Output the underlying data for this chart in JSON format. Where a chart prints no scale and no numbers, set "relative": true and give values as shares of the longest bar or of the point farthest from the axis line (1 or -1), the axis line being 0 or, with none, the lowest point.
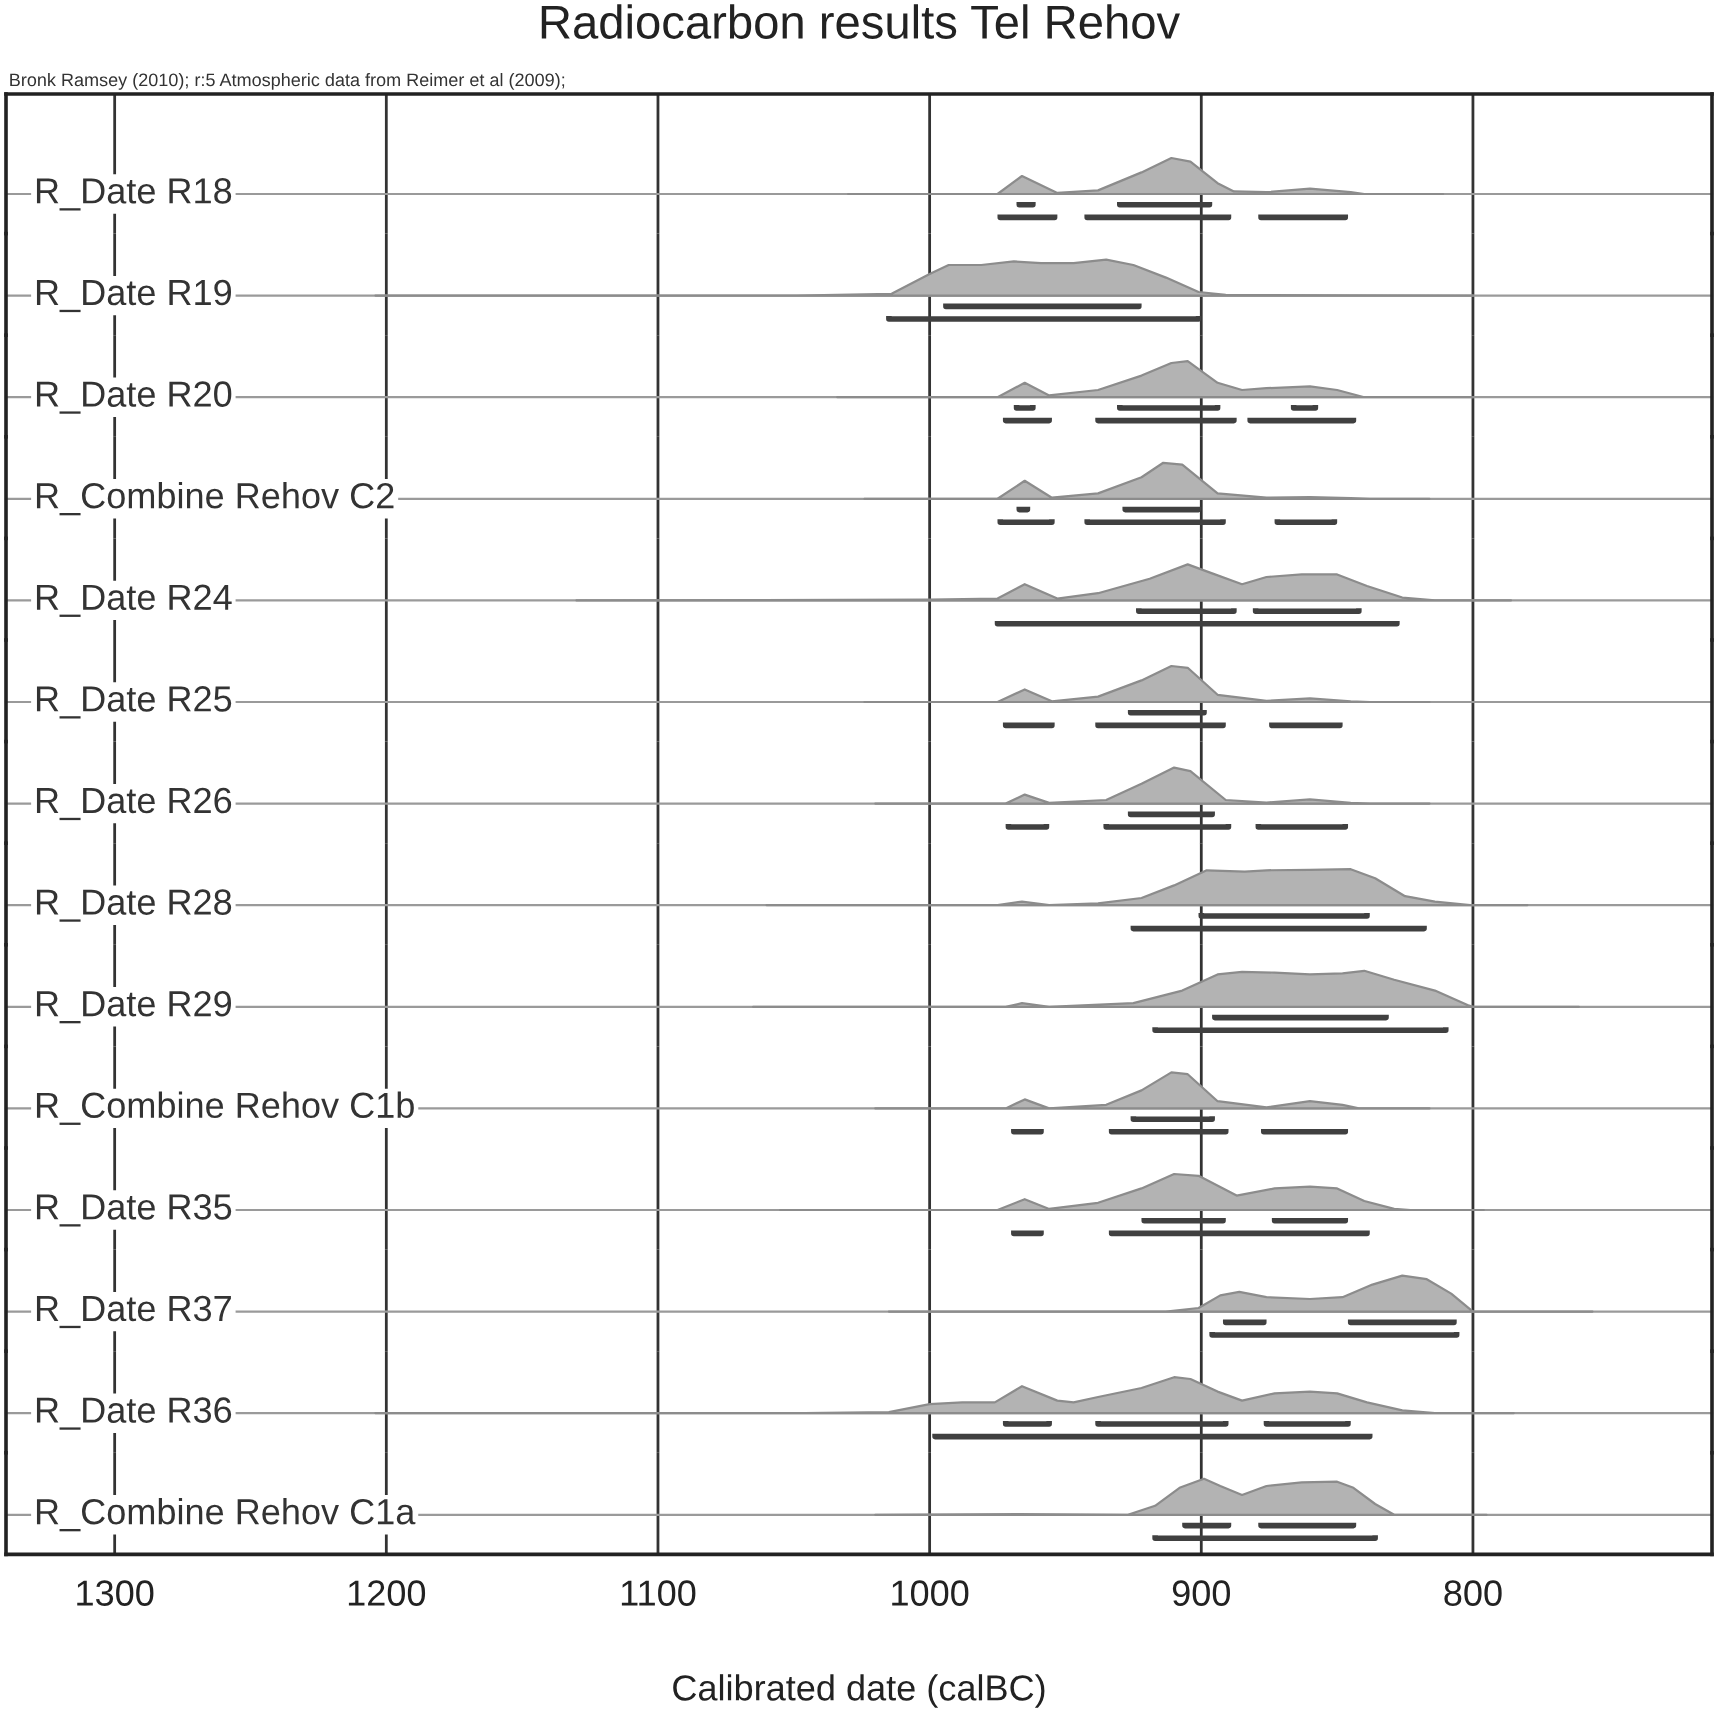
{
  "chart_data": [
    {
      "type": "area",
      "title": "Radiocarbon results Tel Rehov",
      "annotations": [
        "Bronk Ramsey (2010); r:5 Atmospheric data from Reimer et al (2009);"
      ],
      "ylabel": "R_Date R18",
      "relative": true,
      "xlim": [
        1340,
        712
      ],
      "xticks": [
        1300,
        1200,
        1100,
        1000,
        900,
        800
      ],
      "tick_labels": false,
      "grid": "x",
      "series": [
        {
          "color": "#b3b3b3",
          "x": [
            1030,
            975,
            966,
            953,
            938,
            922,
            911,
            904,
            894,
            888,
            876,
            860,
            845,
            840,
            811
          ],
          "values": [
            0,
            0,
            0.5,
            0.03,
            0.1,
            0.6,
            1,
            0.9,
            0.3,
            0.07,
            0.05,
            0.15,
            0.05,
            0,
            0
          ]
        },
        {
          "type": "line",
          "color": "#404040",
          "x": [
            967,
            967,
            962,
            962,
            null,
            930,
            930,
            897,
            897
          ],
          "values": [
            -0.22,
            -0.3,
            -0.3,
            -0.22,
            null,
            -0.22,
            -0.3,
            -0.3,
            -0.22
          ]
        },
        {
          "type": "line",
          "color": "#404040",
          "x": [
            974,
            974,
            954,
            954,
            null,
            942,
            942,
            890,
            890,
            null,
            878,
            878,
            847,
            847
          ],
          "values": [
            -0.57,
            -0.65,
            -0.65,
            -0.57,
            null,
            -0.57,
            -0.65,
            -0.65,
            -0.57,
            null,
            -0.57,
            -0.65,
            -0.65,
            -0.57
          ]
        }
      ]
    },
    {
      "type": "area",
      "ylabel": "R_Date R19",
      "relative": true,
      "xlim": [
        1340,
        712
      ],
      "xticks": [
        1300,
        1200,
        1100,
        1000,
        900,
        800
      ],
      "tick_labels": false,
      "grid": "x",
      "series": [
        {
          "color": "#b3b3b3",
          "x": [
            1204,
            1049,
            1014,
            1000,
            993,
            981,
            969,
            959,
            947,
            935,
            925,
            913,
            901,
            891,
            845,
            800
          ],
          "values": [
            0,
            0,
            0.05,
            0.6,
            0.85,
            0.85,
            0.95,
            0.9,
            0.9,
            1,
            0.85,
            0.5,
            0.1,
            0.02,
            0.01,
            0
          ]
        },
        {
          "type": "line",
          "color": "#404040",
          "x": [
            994,
            994,
            923,
            923
          ],
          "values": [
            -0.22,
            -0.3,
            -0.3,
            -0.22
          ]
        },
        {
          "type": "line",
          "color": "#404040",
          "x": [
            1015,
            1015,
            901,
            901
          ],
          "values": [
            -0.57,
            -0.65,
            -0.65,
            -0.57
          ]
        }
      ]
    },
    {
      "type": "area",
      "ylabel": "R_Date R20",
      "relative": true,
      "xlim": [
        1340,
        712
      ],
      "xticks": [
        1300,
        1200,
        1100,
        1000,
        900,
        800
      ],
      "tick_labels": false,
      "grid": "x",
      "series": [
        {
          "color": "#b3b3b3",
          "x": [
            1034,
            975,
            965,
            956,
            938,
            922,
            911,
            905,
            894,
            885,
            876,
            860,
            850,
            840,
            800
          ],
          "values": [
            0,
            0,
            0.4,
            0.05,
            0.2,
            0.6,
            0.95,
            1,
            0.4,
            0.2,
            0.25,
            0.3,
            0.2,
            0,
            0
          ]
        },
        {
          "type": "line",
          "color": "#404040",
          "x": [
            968,
            968,
            962,
            962,
            null,
            930,
            930,
            894,
            894,
            null,
            866,
            866,
            858,
            858
          ],
          "values": [
            -0.22,
            -0.3,
            -0.3,
            -0.22,
            null,
            -0.22,
            -0.3,
            -0.3,
            -0.22,
            null,
            -0.22,
            -0.3,
            -0.3,
            -0.22
          ]
        },
        {
          "type": "line",
          "color": "#404040",
          "x": [
            972,
            972,
            956,
            956,
            null,
            938,
            938,
            888,
            888,
            null,
            882,
            882,
            844,
            844
          ],
          "values": [
            -0.57,
            -0.65,
            -0.65,
            -0.57,
            null,
            -0.57,
            -0.65,
            -0.65,
            -0.57,
            null,
            -0.57,
            -0.65,
            -0.65,
            -0.57
          ]
        }
      ]
    },
    {
      "type": "area",
      "ylabel": "R_Combine Rehov C2",
      "relative": true,
      "xlim": [
        1340,
        712
      ],
      "xticks": [
        1300,
        1200,
        1100,
        1000,
        900,
        800
      ],
      "tick_labels": false,
      "grid": "x",
      "series": [
        {
          "color": "#b3b3b3",
          "x": [
            1024,
            975,
            965,
            955,
            938,
            922,
            914,
            907,
            894,
            876,
            860,
            845,
            838,
            816
          ],
          "values": [
            0,
            0,
            0.5,
            0.03,
            0.15,
            0.6,
            1,
            0.95,
            0.15,
            0.03,
            0.05,
            0.02,
            0,
            0
          ]
        },
        {
          "type": "line",
          "color": "#404040",
          "x": [
            967,
            967,
            964,
            964,
            null,
            928,
            928,
            901,
            901
          ],
          "values": [
            -0.22,
            -0.3,
            -0.3,
            -0.22,
            null,
            -0.22,
            -0.3,
            -0.3,
            -0.22
          ]
        },
        {
          "type": "line",
          "color": "#404040",
          "x": [
            974,
            974,
            955,
            955,
            null,
            942,
            942,
            892,
            892,
            null,
            872,
            872,
            851,
            851
          ],
          "values": [
            -0.57,
            -0.65,
            -0.65,
            -0.57,
            null,
            -0.57,
            -0.65,
            -0.65,
            -0.57,
            null,
            -0.57,
            -0.65,
            -0.65,
            -0.57
          ]
        }
      ]
    },
    {
      "type": "area",
      "ylabel": "R_Date R24",
      "relative": true,
      "xlim": [
        1340,
        712
      ],
      "xticks": [
        1300,
        1200,
        1100,
        1000,
        900,
        800
      ],
      "tick_labels": false,
      "grid": "x",
      "series": [
        {
          "color": "#b3b3b3",
          "x": [
            1130,
            1000,
            975,
            965,
            953,
            938,
            919,
            905,
            896,
            885,
            876,
            863,
            850,
            839,
            826,
            814,
            786
          ],
          "values": [
            0,
            0.02,
            0.05,
            0.45,
            0.05,
            0.2,
            0.6,
            1,
            0.75,
            0.45,
            0.65,
            0.72,
            0.72,
            0.4,
            0.08,
            0,
            0
          ]
        },
        {
          "type": "line",
          "color": "#404040",
          "x": [
            923,
            923,
            888,
            888,
            null,
            880,
            880,
            842,
            842
          ],
          "values": [
            -0.22,
            -0.3,
            -0.3,
            -0.22,
            null,
            -0.22,
            -0.3,
            -0.3,
            -0.22
          ]
        },
        {
          "type": "line",
          "color": "#404040",
          "x": [
            975,
            975,
            828,
            828
          ],
          "values": [
            -0.57,
            -0.65,
            -0.65,
            -0.57
          ]
        }
      ]
    },
    {
      "type": "area",
      "ylabel": "R_Date R25",
      "relative": true,
      "xlim": [
        1340,
        712
      ],
      "xticks": [
        1300,
        1200,
        1100,
        1000,
        900,
        800
      ],
      "tick_labels": false,
      "grid": "x",
      "series": [
        {
          "color": "#b3b3b3",
          "x": [
            1024,
            975,
            965,
            955,
            938,
            922,
            911,
            905,
            894,
            876,
            860,
            845,
            838,
            816
          ],
          "values": [
            0,
            0,
            0.35,
            0.02,
            0.15,
            0.6,
            1,
            0.95,
            0.2,
            0.03,
            0.1,
            0.02,
            0,
            0
          ]
        },
        {
          "type": "line",
          "color": "#404040",
          "x": [
            926,
            926,
            899,
            899
          ],
          "values": [
            -0.22,
            -0.3,
            -0.3,
            -0.22
          ]
        },
        {
          "type": "line",
          "color": "#404040",
          "x": [
            972,
            972,
            955,
            955,
            null,
            938,
            938,
            892,
            892,
            null,
            874,
            874,
            849,
            849
          ],
          "values": [
            -0.57,
            -0.65,
            -0.65,
            -0.57,
            null,
            -0.57,
            -0.65,
            -0.65,
            -0.57,
            null,
            -0.57,
            -0.65,
            -0.65,
            -0.57
          ]
        }
      ]
    },
    {
      "type": "area",
      "ylabel": "R_Date R26",
      "relative": true,
      "xlim": [
        1340,
        712
      ],
      "xticks": [
        1300,
        1200,
        1100,
        1000,
        900,
        800
      ],
      "tick_labels": false,
      "grid": "x",
      "series": [
        {
          "color": "#b3b3b3",
          "x": [
            1020,
            972,
            965,
            956,
            935,
            922,
            910,
            904,
            891,
            876,
            860,
            845,
            838,
            816
          ],
          "values": [
            0,
            0,
            0.25,
            0.02,
            0.1,
            0.55,
            1,
            0.9,
            0.1,
            0.03,
            0.12,
            0.02,
            0,
            0
          ]
        },
        {
          "type": "line",
          "color": "#404040",
          "x": [
            926,
            926,
            896,
            896
          ],
          "values": [
            -0.22,
            -0.3,
            -0.3,
            -0.22
          ]
        },
        {
          "type": "line",
          "color": "#404040",
          "x": [
            971,
            971,
            957,
            957,
            null,
            935,
            935,
            890,
            890,
            null,
            879,
            879,
            847,
            847
          ],
          "values": [
            -0.57,
            -0.65,
            -0.65,
            -0.57,
            null,
            -0.57,
            -0.65,
            -0.65,
            -0.57,
            null,
            -0.57,
            -0.65,
            -0.65,
            -0.57
          ]
        }
      ]
    },
    {
      "type": "area",
      "ylabel": "R_Date R28",
      "relative": true,
      "xlim": [
        1340,
        712
      ],
      "xticks": [
        1300,
        1200,
        1100,
        1000,
        900,
        800
      ],
      "tick_labels": false,
      "grid": "x",
      "series": [
        {
          "color": "#b3b3b3",
          "x": [
            1060,
            975,
            966,
            956,
            938,
            922,
            910,
            898,
            884,
            876,
            860,
            845,
            836,
            825,
            814,
            801,
            780
          ],
          "values": [
            0,
            0,
            0.1,
            0,
            0.05,
            0.2,
            0.55,
            0.97,
            0.93,
            0.97,
            0.98,
            1,
            0.75,
            0.25,
            0.1,
            0,
            0
          ]
        },
        {
          "type": "line",
          "color": "#404040",
          "x": [
            900,
            900,
            839,
            839
          ],
          "values": [
            -0.22,
            -0.3,
            -0.3,
            -0.22
          ]
        },
        {
          "type": "line",
          "color": "#404040",
          "x": [
            925,
            925,
            818,
            818
          ],
          "values": [
            -0.57,
            -0.65,
            -0.65,
            -0.57
          ]
        }
      ]
    },
    {
      "type": "area",
      "ylabel": "R_Date R29",
      "relative": true,
      "xlim": [
        1340,
        712
      ],
      "xticks": [
        1300,
        1200,
        1100,
        1000,
        900,
        800
      ],
      "tick_labels": false,
      "grid": "x",
      "series": [
        {
          "color": "#b3b3b3",
          "x": [
            1065,
            972,
            966,
            956,
            925,
            907,
            894,
            885,
            873,
            860,
            848,
            840,
            829,
            814,
            802,
            800,
            761
          ],
          "values": [
            0,
            0,
            0.1,
            0,
            0.1,
            0.45,
            0.9,
            0.97,
            0.95,
            0.9,
            0.93,
            1,
            0.75,
            0.45,
            0.05,
            0,
            0
          ]
        },
        {
          "type": "line",
          "color": "#404040",
          "x": [
            895,
            895,
            832,
            832
          ],
          "values": [
            -0.22,
            -0.3,
            -0.3,
            -0.22
          ]
        },
        {
          "type": "line",
          "color": "#404040",
          "x": [
            917,
            917,
            810,
            810
          ],
          "values": [
            -0.57,
            -0.65,
            -0.65,
            -0.57
          ]
        }
      ]
    },
    {
      "type": "area",
      "ylabel": "R_Combine Rehov C1b",
      "relative": true,
      "xlim": [
        1340,
        712
      ],
      "xticks": [
        1300,
        1200,
        1100,
        1000,
        900,
        800
      ],
      "tick_labels": false,
      "grid": "x",
      "series": [
        {
          "color": "#b3b3b3",
          "x": [
            1020,
            972,
            965,
            956,
            935,
            922,
            911,
            905,
            894,
            876,
            860,
            848,
            842,
            816
          ],
          "values": [
            0,
            0,
            0.25,
            0,
            0.1,
            0.5,
            1,
            0.95,
            0.2,
            0.03,
            0.2,
            0.1,
            0,
            0
          ]
        },
        {
          "type": "line",
          "color": "#404040",
          "x": [
            925,
            925,
            896,
            896
          ],
          "values": [
            -0.22,
            -0.3,
            -0.3,
            -0.22
          ]
        },
        {
          "type": "line",
          "color": "#404040",
          "x": [
            969,
            969,
            959,
            959,
            null,
            933,
            933,
            891,
            891,
            null,
            877,
            877,
            847,
            847
          ],
          "values": [
            -0.57,
            -0.65,
            -0.65,
            -0.57,
            null,
            -0.57,
            -0.65,
            -0.65,
            -0.57,
            null,
            -0.57,
            -0.65,
            -0.65,
            -0.57
          ]
        }
      ]
    },
    {
      "type": "area",
      "ylabel": "R_Date R35",
      "relative": true,
      "xlim": [
        1340,
        712
      ],
      "xticks": [
        1300,
        1200,
        1100,
        1000,
        900,
        800
      ],
      "tick_labels": false,
      "grid": "x",
      "series": [
        {
          "color": "#b3b3b3",
          "x": [
            1055,
            975,
            965,
            956,
            938,
            922,
            910,
            901,
            887,
            873,
            860,
            850,
            840,
            829,
            823,
            796
          ],
          "values": [
            0,
            0,
            0.3,
            0.03,
            0.2,
            0.6,
            1,
            0.95,
            0.4,
            0.6,
            0.65,
            0.6,
            0.25,
            0.03,
            0,
            0
          ]
        },
        {
          "type": "line",
          "color": "#404040",
          "x": [
            921,
            921,
            892,
            892,
            null,
            873,
            873,
            847,
            847
          ],
          "values": [
            -0.22,
            -0.3,
            -0.3,
            -0.22,
            null,
            -0.22,
            -0.3,
            -0.3,
            -0.22
          ]
        },
        {
          "type": "line",
          "color": "#404040",
          "x": [
            969,
            969,
            959,
            959,
            null,
            933,
            933,
            839,
            839
          ],
          "values": [
            -0.57,
            -0.65,
            -0.65,
            -0.57,
            null,
            -0.57,
            -0.65,
            -0.65,
            -0.57
          ]
        }
      ]
    },
    {
      "type": "area",
      "ylabel": "R_Date R37",
      "relative": true,
      "xlim": [
        1340,
        712
      ],
      "xticks": [
        1300,
        1200,
        1100,
        1000,
        900,
        800
      ],
      "tick_labels": false,
      "grid": "x",
      "series": [
        {
          "color": "#b3b3b3",
          "x": [
            1015,
            913,
            901,
            893,
            886,
            876,
            860,
            848,
            837,
            826,
            817,
            808,
            800,
            756
          ],
          "values": [
            0,
            0,
            0.1,
            0.45,
            0.55,
            0.4,
            0.35,
            0.4,
            0.75,
            1,
            0.9,
            0.5,
            0,
            0
          ]
        },
        {
          "type": "line",
          "color": "#404040",
          "x": [
            891,
            891,
            877,
            877,
            null,
            845,
            845,
            807,
            807
          ],
          "values": [
            -0.22,
            -0.3,
            -0.3,
            -0.22,
            null,
            -0.22,
            -0.3,
            -0.3,
            -0.22
          ]
        },
        {
          "type": "line",
          "color": "#404040",
          "x": [
            896,
            896,
            806,
            806
          ],
          "values": [
            -0.57,
            -0.65,
            -0.65,
            -0.57
          ]
        }
      ]
    },
    {
      "type": "area",
      "ylabel": "R_Date R36",
      "relative": true,
      "xlim": [
        1340,
        712
      ],
      "xticks": [
        1300,
        1200,
        1100,
        1000,
        900,
        800
      ],
      "tick_labels": false,
      "grid": "x",
      "series": [
        {
          "color": "#b3b3b3",
          "x": [
            1204,
            1046,
            1015,
            1000,
            988,
            976,
            966,
            953,
            947,
            938,
            922,
            910,
            904,
            894,
            885,
            873,
            860,
            850,
            839,
            826,
            814,
            785
          ],
          "values": [
            0,
            0,
            0.03,
            0.25,
            0.3,
            0.3,
            0.75,
            0.35,
            0.3,
            0.45,
            0.7,
            1,
            0.95,
            0.6,
            0.35,
            0.55,
            0.6,
            0.55,
            0.3,
            0.08,
            0,
            0
          ]
        },
        {
          "type": "line",
          "color": "#404040",
          "x": [
            972,
            972,
            956,
            956,
            null,
            938,
            938,
            891,
            891,
            null,
            876,
            876,
            846,
            846
          ],
          "values": [
            -0.22,
            -0.3,
            -0.3,
            -0.22,
            null,
            -0.22,
            -0.3,
            -0.3,
            -0.22,
            null,
            -0.22,
            -0.3,
            -0.3,
            -0.22
          ]
        },
        {
          "type": "line",
          "color": "#404040",
          "x": [
            998,
            998,
            838,
            838
          ],
          "values": [
            -0.57,
            -0.65,
            -0.65,
            -0.57
          ]
        }
      ]
    },
    {
      "type": "area",
      "ylabel": "R_Combine Rehov C1a",
      "xlabel": "Calibrated date (calBC)",
      "relative": true,
      "xlim": [
        1340,
        712
      ],
      "xticks": [
        1300,
        1200,
        1100,
        1000,
        900,
        800
      ],
      "tick_labels": "x",
      "grid": "x",
      "series": [
        {
          "color": "#b3b3b3",
          "x": [
            1020,
            967,
            927,
            917,
            908,
            899,
            893,
            885,
            876,
            863,
            850,
            844,
            836,
            829,
            795
          ],
          "values": [
            0,
            0.02,
            0,
            0.25,
            0.75,
            1,
            0.8,
            0.55,
            0.8,
            0.9,
            0.92,
            0.75,
            0.3,
            0,
            0
          ]
        },
        {
          "type": "line",
          "color": "#404040",
          "x": [
            906,
            906,
            890,
            890,
            null,
            878,
            878,
            844,
            844
          ],
          "values": [
            -0.22,
            -0.3,
            -0.3,
            -0.22,
            null,
            -0.22,
            -0.3,
            -0.3,
            -0.22
          ]
        },
        {
          "type": "line",
          "color": "#404040",
          "x": [
            917,
            917,
            836,
            836
          ],
          "values": [
            -0.57,
            -0.65,
            -0.65,
            -0.57
          ]
        }
      ]
    }
  ]
}
